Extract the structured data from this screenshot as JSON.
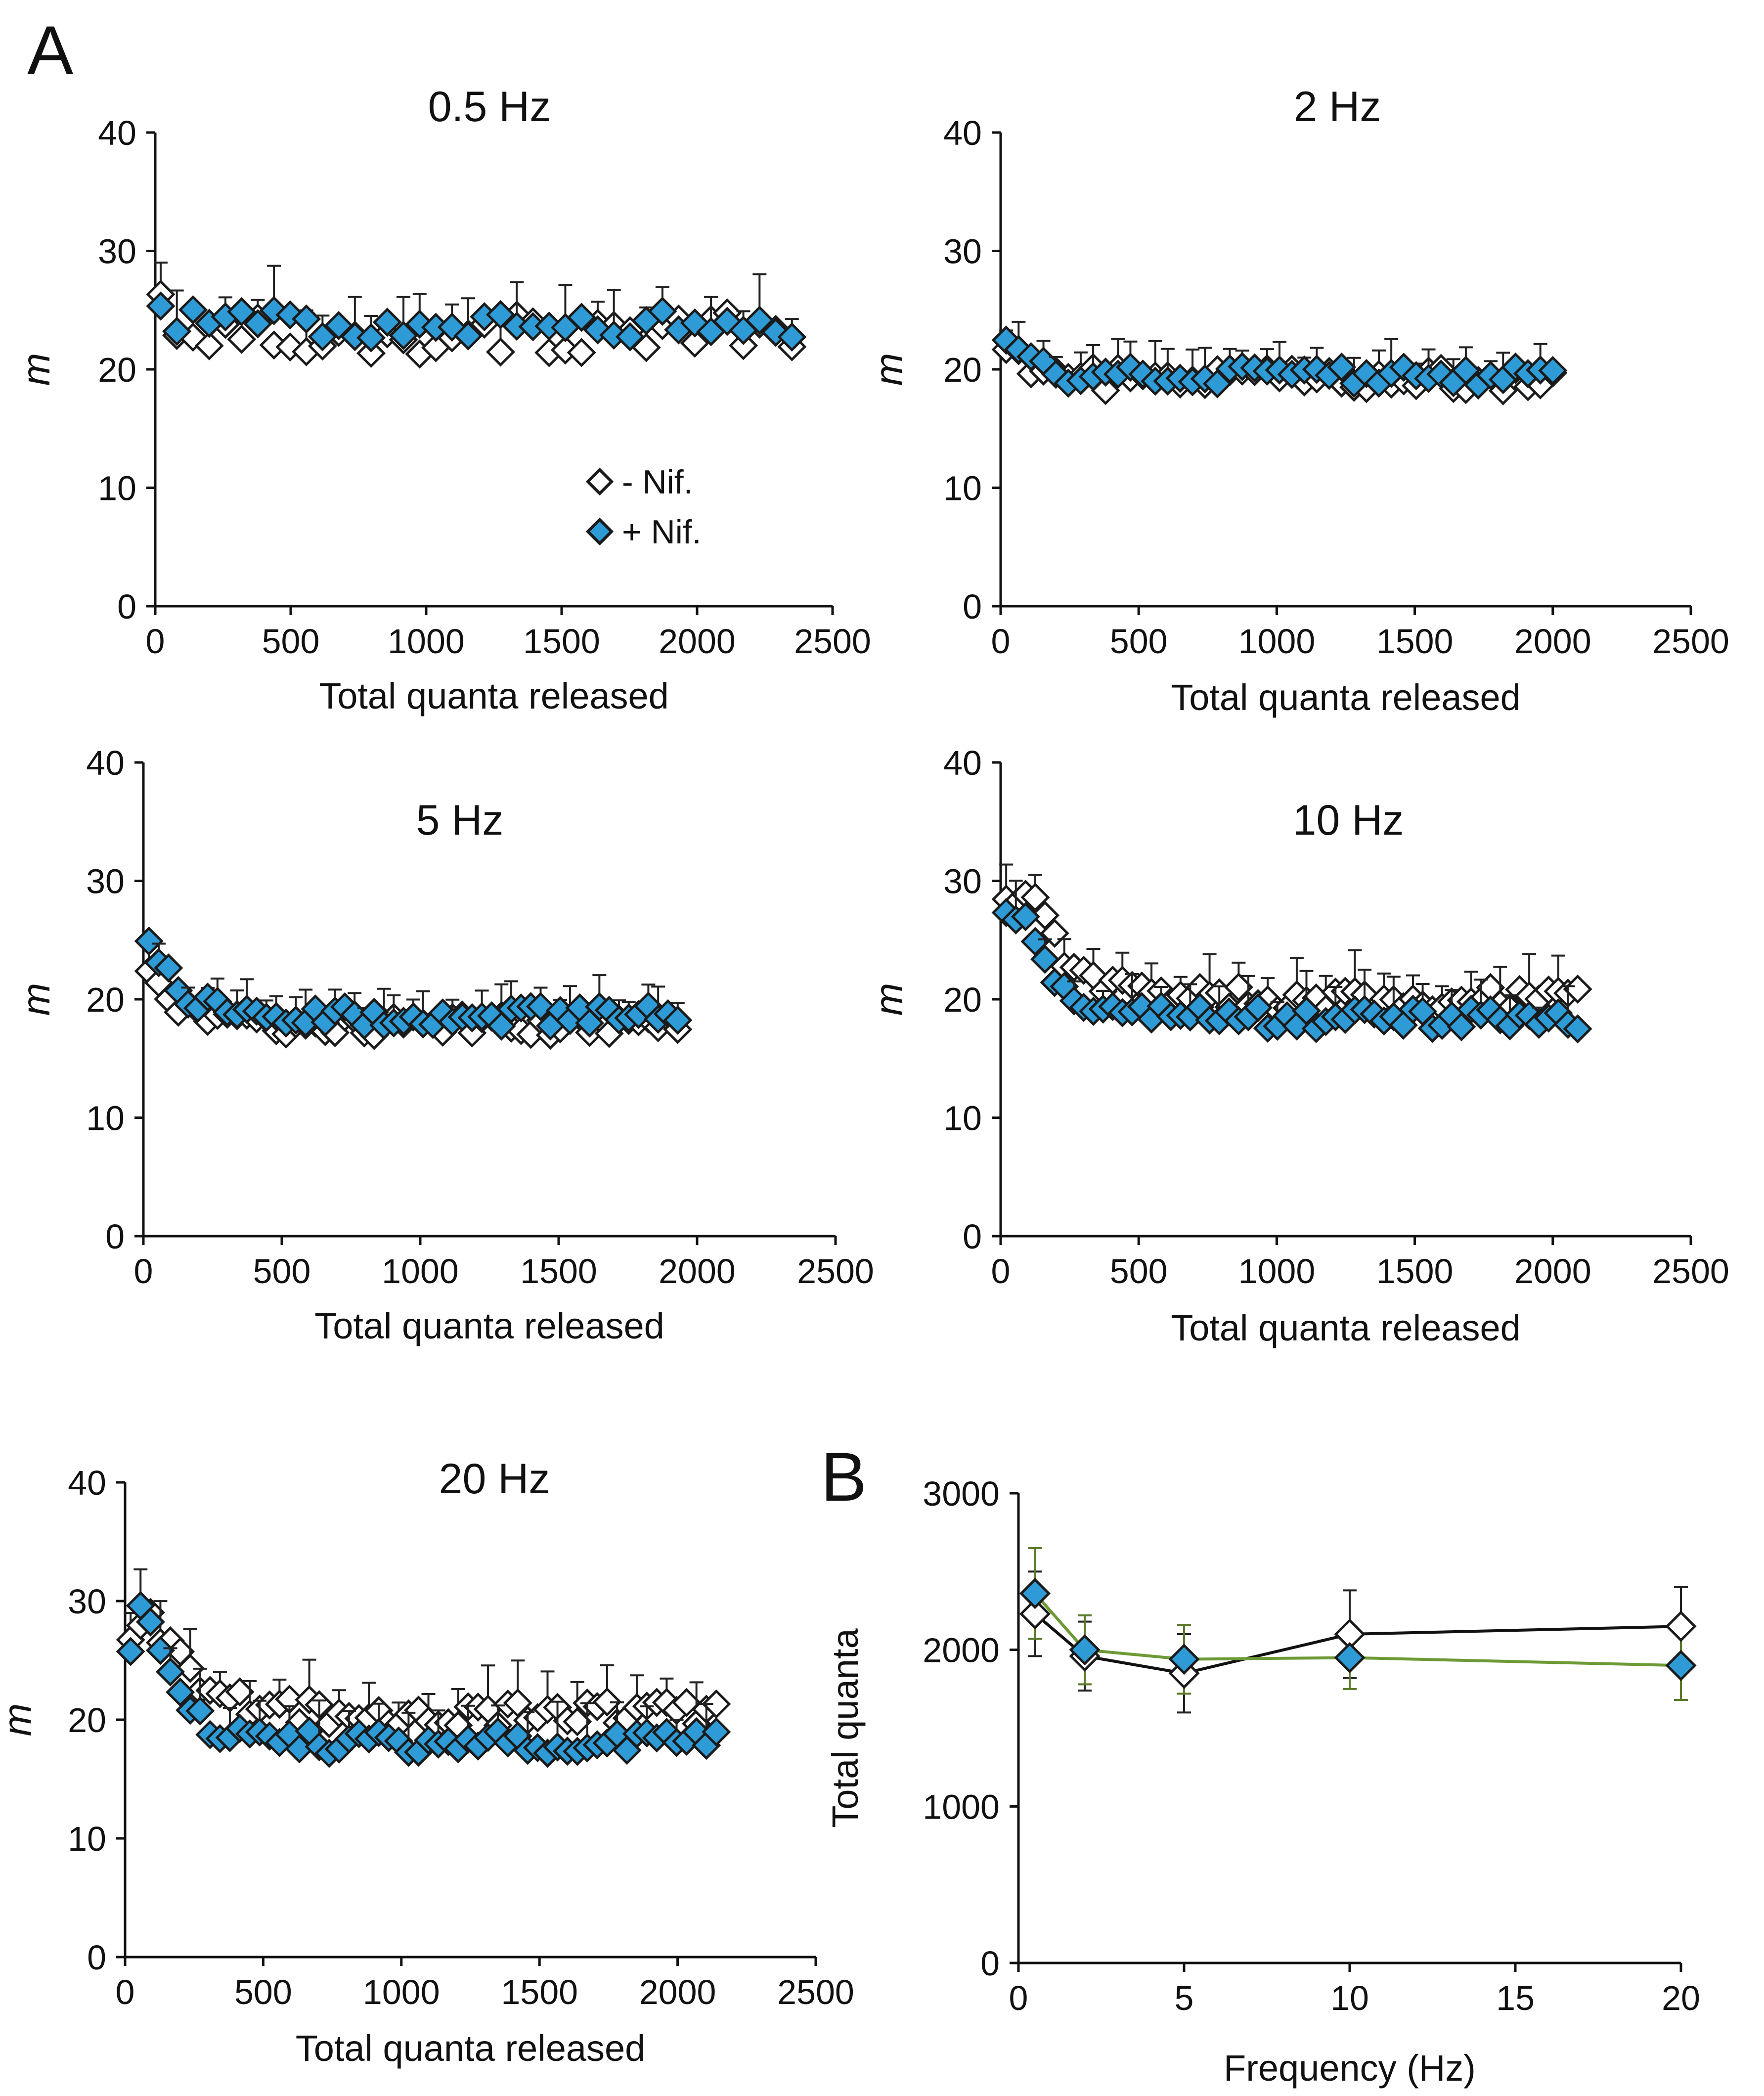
{
  "panel_labels": {
    "A": "A",
    "B": "B"
  },
  "legend": {
    "minus_label": "-  Nif.",
    "plus_label": "+ Nif."
  },
  "colors": {
    "plus": "#2e9bd6",
    "minus": "#ffffff",
    "stroke": "#1a1a1a",
    "line_plus": "#6e9a35",
    "line_minus": "#111111",
    "err_plus": "#5a7a2a"
  },
  "chart_data": [
    {
      "type": "scatter",
      "title": "0.5 Hz",
      "xlabel": "Total quanta released",
      "ylabel": "m",
      "xlim": [
        0,
        2500
      ],
      "ylim": [
        0,
        40
      ],
      "xticks": [
        "0",
        "500",
        "1000",
        "1500",
        "2000",
        "2500"
      ],
      "yticks": [
        "0",
        "10",
        "20",
        "30",
        "40"
      ],
      "pattern": "flat",
      "n_points": 40,
      "x_end": 2350,
      "series": [
        {
          "name": "- Nif.",
          "start": 27,
          "steady": 23.0,
          "amplitude": 1.8,
          "err": 2.5
        },
        {
          "name": "+ Nif.",
          "start": 25.5,
          "steady": 23.8,
          "amplitude": 1.2,
          "err": 2.6
        }
      ]
    },
    {
      "type": "scatter",
      "title": "2 Hz",
      "xlabel": "Total quanta released",
      "ylabel": "m",
      "xlim": [
        0,
        2500
      ],
      "ylim": [
        0,
        40
      ],
      "xticks": [
        "0",
        "500",
        "1000",
        "1500",
        "2000",
        "2500"
      ],
      "yticks": [
        "0",
        "10",
        "20",
        "30",
        "40"
      ],
      "pattern": "decay",
      "n_points": 45,
      "x_end": 2000,
      "series": [
        {
          "name": "- Nif.",
          "start": 24,
          "steady": 19.2,
          "decay_x": 60,
          "amplitude": 1.0,
          "err": 2.0
        },
        {
          "name": "+ Nif.",
          "start": 25,
          "steady": 19.5,
          "decay_x": 55,
          "amplitude": 0.9,
          "err": 2.2
        }
      ]
    },
    {
      "type": "scatter",
      "title": "5 Hz",
      "xlabel": "Total quanta released",
      "ylabel": "m",
      "xlim": [
        0,
        2500
      ],
      "ylim": [
        0,
        40
      ],
      "xticks": [
        "0",
        "500",
        "1000",
        "1500",
        "2000",
        "2500"
      ],
      "yticks": [
        "0",
        "10",
        "20",
        "30",
        "40"
      ],
      "pattern": "decay",
      "n_points": 55,
      "x_end": 1930,
      "series": [
        {
          "name": "- Nif.",
          "start": 23.5,
          "steady": 17.8,
          "decay_x": 110,
          "amplitude": 0.9,
          "err": 2.0
        },
        {
          "name": "+ Nif.",
          "start": 26.5,
          "steady": 18.6,
          "decay_x": 100,
          "amplitude": 0.9,
          "err": 2.0
        }
      ]
    },
    {
      "type": "scatter",
      "title": "10 Hz",
      "xlabel": "Total quanta released",
      "ylabel": "m",
      "xlim": [
        0,
        2500
      ],
      "ylim": [
        0,
        40
      ],
      "xticks": [
        "0",
        "500",
        "1000",
        "1500",
        "2000",
        "2500"
      ],
      "yticks": [
        "0",
        "10",
        "20",
        "30",
        "40"
      ],
      "pattern": "rise-decay",
      "n_points": 60,
      "x_end": 2090,
      "series": [
        {
          "name": "- Nif.",
          "start": 27.5,
          "peak": 29.5,
          "peak_x": 110,
          "steady": 20.0,
          "decay_x": 130,
          "amplitude": 1.0,
          "err": 2.5
        },
        {
          "name": "+ Nif.",
          "start": 26.5,
          "peak": 27.5,
          "peak_x": 70,
          "steady": 18.4,
          "decay_x": 120,
          "amplitude": 0.9,
          "err": 2.3
        }
      ]
    },
    {
      "type": "scatter",
      "title": "20 Hz",
      "xlabel": "Total quanta released",
      "ylabel": "m",
      "xlim": [
        0,
        2500
      ],
      "ylim": [
        0,
        40
      ],
      "xticks": [
        "0",
        "500",
        "1000",
        "1500",
        "2000",
        "2500"
      ],
      "yticks": [
        "0",
        "10",
        "20",
        "30",
        "40"
      ],
      "pattern": "rise-decay",
      "n_points": 60,
      "x_end": 2140,
      "series": [
        {
          "name": "- Nif.",
          "start": 26.5,
          "peak": 30.0,
          "peak_x": 80,
          "steady": 20.5,
          "decay_x": 150,
          "amplitude": 1.0,
          "err": 2.5
        },
        {
          "name": "+ Nif.",
          "start": 25,
          "peak": 30.5,
          "peak_x": 80,
          "steady": 18.0,
          "decay_x": 110,
          "amplitude": 1.0,
          "err": 2.6
        }
      ]
    },
    {
      "type": "line",
      "title": "",
      "xlabel": "Frequency (Hz)",
      "ylabel": "Total quanta",
      "xlim": [
        0,
        20
      ],
      "ylim": [
        0,
        3000
      ],
      "xticks": [
        "0",
        "5",
        "10",
        "15",
        "20"
      ],
      "yticks": [
        "0",
        "1000",
        "2000",
        "3000"
      ],
      "x": [
        0.5,
        2,
        5,
        10,
        20
      ],
      "series": [
        {
          "name": "- Nif.",
          "values": [
            2230,
            1960,
            1850,
            2100,
            2150
          ],
          "errors": [
            270,
            220,
            250,
            280,
            250
          ]
        },
        {
          "name": "+ Nif.",
          "values": [
            2360,
            2000,
            1940,
            1950,
            1900
          ],
          "errors": [
            290,
            220,
            220,
            200,
            220
          ]
        }
      ]
    }
  ]
}
